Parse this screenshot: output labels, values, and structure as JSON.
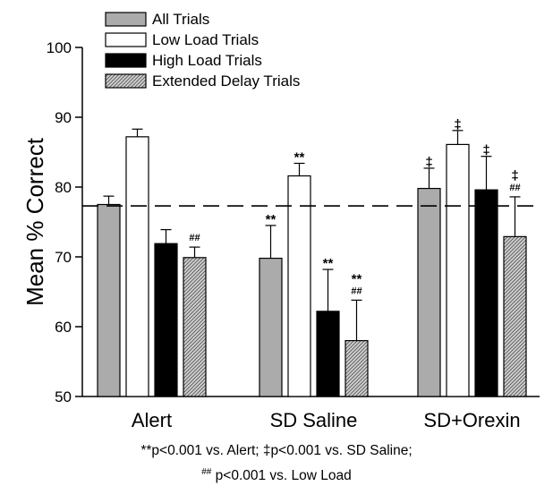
{
  "chart_data": {
    "type": "bar",
    "ylabel": "Mean % Correct",
    "xlabel": "",
    "ylim": [
      50,
      100
    ],
    "yticks": [
      50,
      60,
      70,
      80,
      90,
      100
    ],
    "grid": false,
    "legend_position": "top-left",
    "categories": [
      "Alert",
      "SD Saline",
      "SD+Orexin"
    ],
    "reference_line": {
      "y": 77.3,
      "style": "dashed"
    },
    "series": [
      {
        "name": "All Trials",
        "fill": "#ababab",
        "pattern": "solid",
        "values": [
          77.5,
          69.8,
          79.8
        ],
        "errors": [
          1.2,
          4.7,
          2.9
        ]
      },
      {
        "name": "Low Load Trials",
        "fill": "#ffffff",
        "pattern": "solid",
        "values": [
          87.2,
          81.6,
          86.1
        ],
        "errors": [
          1.1,
          1.8,
          2.0
        ]
      },
      {
        "name": "High Load Trials",
        "fill": "#000000",
        "pattern": "solid",
        "values": [
          71.9,
          62.2,
          79.6
        ],
        "errors": [
          2.0,
          6.0,
          4.8
        ]
      },
      {
        "name": "Extended Delay Trials",
        "fill": "#c8c8c8",
        "pattern": "diagonal-hatch",
        "values": [
          69.9,
          58.0,
          72.9
        ],
        "errors": [
          1.5,
          5.8,
          5.7
        ]
      }
    ],
    "annotations": [
      {
        "category": 0,
        "series": 3,
        "lines": [
          "##"
        ]
      },
      {
        "category": 1,
        "series": 0,
        "lines": [
          "**"
        ]
      },
      {
        "category": 1,
        "series": 1,
        "lines": [
          "**"
        ]
      },
      {
        "category": 1,
        "series": 2,
        "lines": [
          "**"
        ]
      },
      {
        "category": 1,
        "series": 3,
        "lines": [
          "**",
          "##"
        ]
      },
      {
        "category": 2,
        "series": 0,
        "lines": [
          "‡"
        ]
      },
      {
        "category": 2,
        "series": 1,
        "lines": [
          "‡"
        ]
      },
      {
        "category": 2,
        "series": 2,
        "lines": [
          "‡"
        ]
      },
      {
        "category": 2,
        "series": 3,
        "lines": [
          "‡",
          "##"
        ]
      }
    ]
  },
  "footnote": {
    "line1": "**p<0.001 vs. Alert;  ‡p<0.001 vs. SD Saline;",
    "line2_sup": "##",
    "line2": " p<0.001 vs. Low Load"
  }
}
